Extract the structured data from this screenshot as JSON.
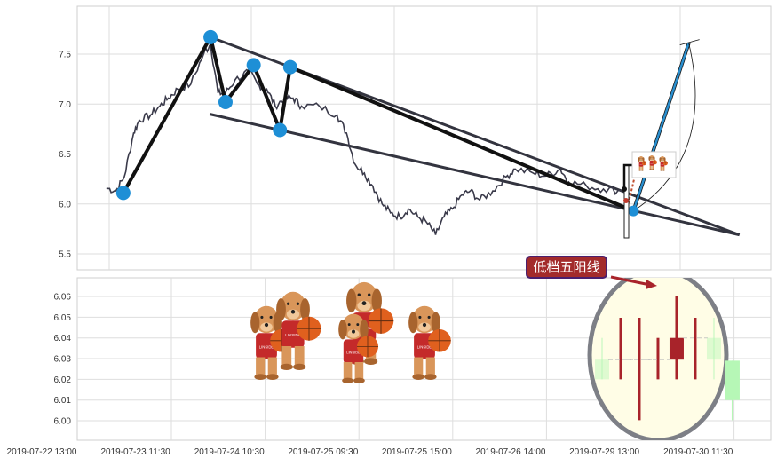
{
  "chart_data": [
    {
      "type": "line",
      "panel": "top",
      "x_tick_labels": [
        "2019-07-22 13:00",
        "2019-07-23 11:30",
        "2019-07-24 10:30",
        "2019-07-25 09:30",
        "2019-07-25 15:00",
        "2019-07-26 14:00",
        "2019-07-29 13:00",
        "2019-07-30 11:30"
      ],
      "x_unit_note": "x values are positions on the x-tick-label index scale",
      "ylim": [
        5.34,
        7.98
      ],
      "y_ticks": [
        "5.5",
        "6.0",
        "6.5",
        "7.0",
        "7.5"
      ],
      "grid": true,
      "price_series": [
        [
          0.69,
          6.16
        ],
        [
          0.79,
          6.13
        ],
        [
          0.88,
          6.27
        ],
        [
          0.98,
          6.71
        ],
        [
          1.04,
          6.84
        ],
        [
          1.16,
          6.89
        ],
        [
          1.26,
          6.98
        ],
        [
          1.35,
          7.06
        ],
        [
          1.45,
          7.15
        ],
        [
          1.59,
          7.2
        ],
        [
          1.73,
          7.51
        ],
        [
          1.8,
          7.6
        ],
        [
          1.88,
          7.11
        ],
        [
          1.96,
          7.11
        ],
        [
          2.06,
          7.24
        ],
        [
          2.21,
          7.33
        ],
        [
          2.3,
          7.2
        ],
        [
          2.4,
          7.15
        ],
        [
          2.49,
          6.98
        ],
        [
          2.59,
          7.06
        ],
        [
          2.68,
          7.06
        ],
        [
          2.77,
          6.98
        ],
        [
          2.96,
          6.98
        ],
        [
          3.15,
          6.89
        ],
        [
          3.25,
          6.71
        ],
        [
          3.34,
          6.4
        ],
        [
          3.44,
          6.31
        ],
        [
          3.53,
          6.18
        ],
        [
          3.63,
          6.0
        ],
        [
          3.72,
          5.91
        ],
        [
          3.82,
          5.87
        ],
        [
          3.91,
          5.95
        ],
        [
          4.01,
          5.87
        ],
        [
          4.1,
          5.82
        ],
        [
          4.2,
          5.69
        ],
        [
          4.29,
          5.87
        ],
        [
          4.38,
          5.95
        ],
        [
          4.48,
          6.09
        ],
        [
          4.57,
          6.13
        ],
        [
          4.67,
          6.04
        ],
        [
          4.81,
          6.13
        ],
        [
          4.95,
          6.27
        ],
        [
          5.05,
          6.35
        ],
        [
          5.24,
          6.31
        ],
        [
          5.38,
          6.28
        ],
        [
          5.53,
          6.35
        ],
        [
          5.62,
          6.22
        ],
        [
          5.81,
          6.18
        ],
        [
          5.99,
          6.15
        ],
        [
          6.18,
          6.13
        ]
      ],
      "pivot_points": [
        [
          0.87,
          6.11
        ],
        [
          1.8,
          7.67
        ],
        [
          1.96,
          7.02
        ],
        [
          2.26,
          7.39
        ],
        [
          2.54,
          6.74
        ],
        [
          2.65,
          7.37
        ],
        [
          6.31,
          5.93
        ]
      ],
      "trend_lines": [
        {
          "from": [
            1.8,
            7.67
          ],
          "to": [
            7.44,
            5.69
          ]
        },
        {
          "from": [
            1.79,
            6.9
          ],
          "to": [
            7.44,
            5.69
          ]
        },
        {
          "from": [
            2.65,
            7.37
          ],
          "to": [
            6.31,
            5.93
          ]
        }
      ],
      "projection_line": {
        "from": [
          6.31,
          5.93
        ],
        "to": [
          6.9,
          7.61
        ]
      },
      "colors": {
        "price": "#3a3a4a",
        "pivot": "#1e8fd6",
        "trend": "#33343f",
        "projection": "#2a8fcf"
      }
    },
    {
      "type": "candlestick",
      "panel": "bottom",
      "ylim": [
        5.9906,
        6.069
      ],
      "y_ticks": [
        "6.00",
        "6.01",
        "6.02",
        "6.03",
        "6.04",
        "6.05",
        "6.06"
      ],
      "grid": true,
      "candles": [
        {
          "x": 6.0,
          "open": 6.0295,
          "close": 6.02,
          "high": 6.04,
          "low": 6.02,
          "faded": true
        },
        {
          "x": 6.2,
          "open": 6.0295,
          "close": 6.0295,
          "high": 6.0497,
          "low": 6.02
        },
        {
          "x": 6.4,
          "open": 6.0295,
          "close": 6.0295,
          "high": 6.0497,
          "low": 6.0003
        },
        {
          "x": 6.6,
          "open": 6.0295,
          "close": 6.0295,
          "high": 6.04,
          "low": 6.02
        },
        {
          "x": 6.8,
          "open": 6.0295,
          "close": 6.04,
          "high": 6.06,
          "low": 6.02
        },
        {
          "x": 7.0,
          "open": 6.04,
          "close": 6.04,
          "high": 6.0497,
          "low": 6.02
        },
        {
          "x": 7.2,
          "open": 6.04,
          "close": 6.0295,
          "high": 6.0497,
          "low": 6.02,
          "faded": true
        },
        {
          "x": 7.4,
          "open": 6.029,
          "close": 6.01,
          "high": 6.029,
          "low": 6.0003
        }
      ],
      "colors": {
        "up": "#a8232a",
        "down": "#b6f7b6",
        "highlight_fill": "#fffde6",
        "highlight_ring": "#7d7f86"
      }
    }
  ],
  "annotation": {
    "label": "低档五阳线",
    "bg": "#a32b2b",
    "border": "#4a1f6e",
    "arrow": "#a8232a"
  },
  "decoration": {
    "image": "cartoon dogs holding basketballs"
  }
}
